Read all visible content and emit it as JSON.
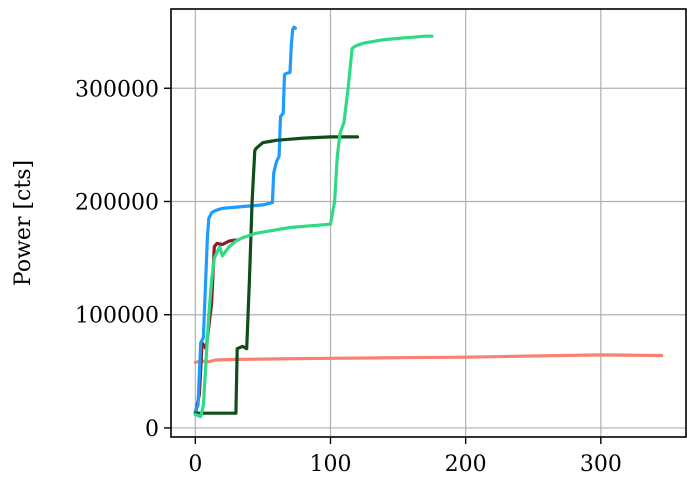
{
  "chart_data": {
    "type": "line",
    "title": "",
    "xlabel": "",
    "ylabel": "Power [cts]",
    "xlim": [
      -18,
      363
    ],
    "ylim": [
      -8000,
      370000
    ],
    "grid": true,
    "legend": "none",
    "x_ticks": [
      0,
      100,
      200,
      300
    ],
    "x_tick_labels": [
      "0",
      "100",
      "200",
      "300"
    ],
    "y_ticks": [
      0,
      100000,
      200000,
      300000
    ],
    "y_tick_labels": [
      "0",
      "100000",
      "200000",
      "300000"
    ],
    "series": [
      {
        "color": "#fa8072",
        "x": [
          0,
          5,
          10,
          15,
          30,
          60,
          100,
          150,
          200,
          250,
          300,
          345
        ],
        "y": [
          58000,
          59000,
          58500,
          60000,
          60500,
          61000,
          61500,
          62000,
          62500,
          63500,
          64500,
          64000
        ]
      },
      {
        "color": "#8b1a2b",
        "x": [
          0,
          3,
          5,
          8,
          12,
          14,
          16,
          20,
          25,
          30
        ],
        "y": [
          12000,
          30000,
          75000,
          70000,
          110000,
          160000,
          163000,
          162000,
          165000,
          166000
        ]
      },
      {
        "color": "#1e9bff",
        "x": [
          0,
          2,
          4,
          6,
          8,
          9,
          10,
          12,
          15,
          20,
          30,
          40,
          50,
          57,
          58,
          60,
          62,
          63,
          65,
          66,
          67,
          70,
          71,
          72,
          73,
          74
        ],
        "y": [
          15000,
          20000,
          75000,
          80000,
          140000,
          170000,
          185000,
          190000,
          192000,
          194000,
          195000,
          196000,
          197000,
          199000,
          225000,
          235000,
          240000,
          275000,
          278000,
          312000,
          313000,
          314000,
          338000,
          352000,
          354000,
          353000
        ]
      },
      {
        "color": "#0f4d1a",
        "x": [
          0,
          10,
          20,
          30,
          31,
          35,
          38,
          40,
          42,
          44,
          45,
          48,
          50,
          55,
          60,
          70,
          80,
          90,
          100,
          110,
          120
        ],
        "y": [
          13000,
          13000,
          13000,
          13000,
          70000,
          72000,
          70000,
          130000,
          200000,
          245000,
          247000,
          250000,
          252000,
          253000,
          254000,
          255000,
          256000,
          256500,
          257000,
          257000,
          257000
        ]
      },
      {
        "color": "#2edb84",
        "x": [
          0,
          4,
          6,
          8,
          10,
          12,
          14,
          16,
          18,
          20,
          25,
          30,
          35,
          40,
          45,
          50,
          60,
          70,
          80,
          90,
          100,
          103,
          105,
          107,
          110,
          113,
          116,
          118,
          120,
          125,
          130,
          140,
          150,
          160,
          170,
          175
        ],
        "y": [
          12000,
          10000,
          20000,
          60000,
          100000,
          130000,
          150000,
          155000,
          160000,
          152000,
          160000,
          165000,
          168000,
          170000,
          172000,
          173000,
          175000,
          177000,
          178000,
          179000,
          180000,
          200000,
          240000,
          260000,
          270000,
          300000,
          335000,
          337000,
          338000,
          340000,
          341000,
          343000,
          344000,
          345000,
          346000,
          346000
        ]
      }
    ]
  }
}
